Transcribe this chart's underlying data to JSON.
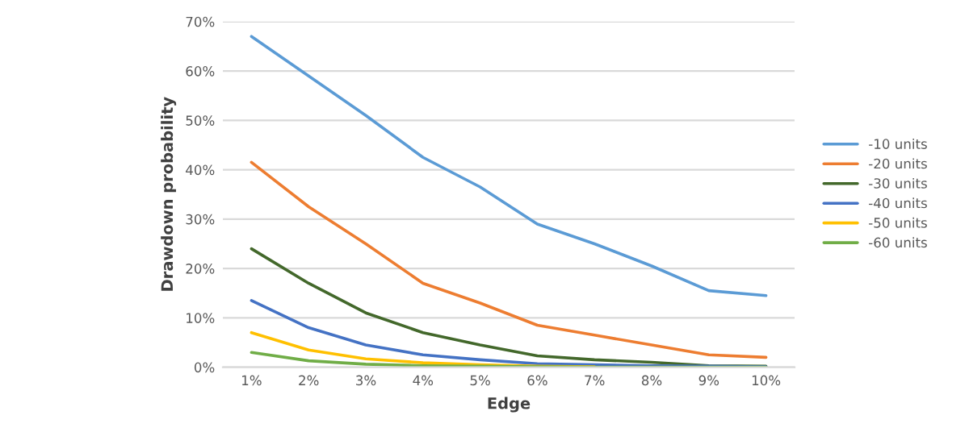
{
  "chart_data": {
    "type": "line",
    "xlabel": "Edge",
    "ylabel": "Drawdown probability",
    "categories": [
      "1%",
      "2%",
      "3%",
      "4%",
      "5%",
      "6%",
      "7%",
      "8%",
      "9%",
      "10%"
    ],
    "series": [
      {
        "name": "-10 units",
        "color": "#5b9bd5",
        "values": [
          67,
          59,
          51,
          42.5,
          36.5,
          29,
          25,
          20.5,
          15.5,
          14.5
        ]
      },
      {
        "name": "-20 units",
        "color": "#ed7d31",
        "values": [
          41.5,
          32.5,
          25,
          17,
          13,
          8.5,
          6.5,
          4.5,
          2.5,
          2
        ]
      },
      {
        "name": "-30 units",
        "color": "#43682b",
        "values": [
          24,
          17,
          11,
          7,
          4.5,
          2.3,
          1.5,
          1,
          0.3,
          0.2
        ]
      },
      {
        "name": "-40 units",
        "color": "#4472c4",
        "values": [
          13.5,
          8,
          4.5,
          2.5,
          1.5,
          0.7,
          0.5,
          0.3,
          0.2,
          0.1
        ]
      },
      {
        "name": "-50 units",
        "color": "#ffc000",
        "values": [
          7,
          3.5,
          1.7,
          0.9,
          0.5,
          0.2,
          0.1,
          null,
          null,
          null
        ]
      },
      {
        "name": "-60 units",
        "color": "#70ad47",
        "values": [
          3,
          1.3,
          0.6,
          0.3,
          0.2,
          0.1,
          0,
          0,
          0,
          0
        ]
      }
    ],
    "ylim": [
      0,
      70
    ],
    "yticks": [
      {
        "value": 0,
        "label": "0%"
      },
      {
        "value": 10,
        "label": "10%"
      },
      {
        "value": 20,
        "label": "20%"
      },
      {
        "value": 30,
        "label": "30%"
      },
      {
        "value": 40,
        "label": "40%"
      },
      {
        "value": 50,
        "label": "50%"
      },
      {
        "value": 60,
        "label": "60%"
      },
      {
        "value": 70,
        "label": "70%"
      }
    ],
    "grid": "y",
    "legend": "right",
    "marker": "none",
    "line_style": "solid"
  }
}
